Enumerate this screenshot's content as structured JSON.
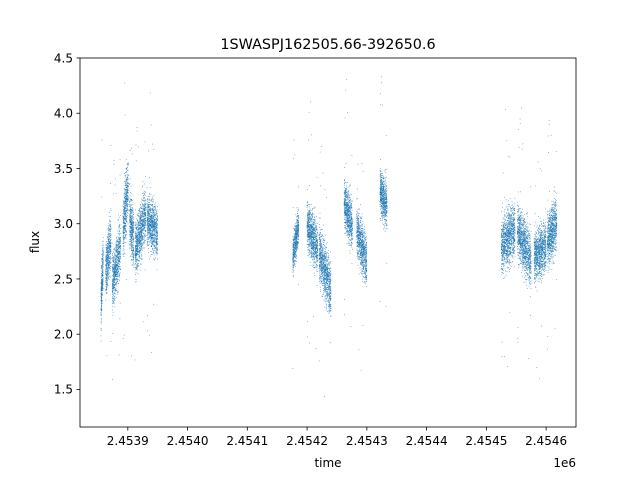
{
  "chart_data": {
    "type": "scatter",
    "title": "1SWASPJ162505.66-392650.6",
    "xlabel": "time",
    "ylabel": "flux",
    "x_offset_label": "1e6",
    "xlim": [
      2453820,
      2454650
    ],
    "ylim": [
      1.16,
      4.5
    ],
    "x_ticks": [
      2453900,
      2454000,
      2454100,
      2454200,
      2454300,
      2454400,
      2454500,
      2454600
    ],
    "x_tick_labels": [
      "2.4539",
      "2.4540",
      "2.4541",
      "2.4542",
      "2.4543",
      "2.4544",
      "2.4545",
      "2.4546"
    ],
    "y_ticks": [
      1.5,
      2.0,
      2.5,
      3.0,
      3.5,
      4.0,
      4.5
    ],
    "y_tick_labels": [
      "1.5",
      "2.0",
      "2.5",
      "3.0",
      "3.5",
      "4.0",
      "4.5"
    ],
    "grid": false,
    "point_color": "#1f77b4",
    "segments": [
      {
        "x_start": 2453855,
        "x_end": 2453859,
        "y_start": 2.25,
        "y_end": 2.7,
        "spread": 0.22
      },
      {
        "x_start": 2453863,
        "x_end": 2453872,
        "y_start": 2.55,
        "y_end": 2.85,
        "spread": 0.22
      },
      {
        "x_start": 2453874,
        "x_end": 2453888,
        "y_start": 2.45,
        "y_end": 2.8,
        "spread": 0.22
      },
      {
        "x_start": 2453892,
        "x_end": 2453901,
        "y_start": 2.95,
        "y_end": 3.35,
        "spread": 0.25
      },
      {
        "x_start": 2453903,
        "x_end": 2453910,
        "y_start": 3.05,
        "y_end": 2.85,
        "spread": 0.22
      },
      {
        "x_start": 2453912,
        "x_end": 2453930,
        "y_start": 2.75,
        "y_end": 3.1,
        "spread": 0.22
      },
      {
        "x_start": 2453932,
        "x_end": 2453950,
        "y_start": 3.05,
        "y_end": 2.9,
        "spread": 0.2
      },
      {
        "x_start": 2454176,
        "x_end": 2454186,
        "y_start": 2.7,
        "y_end": 3.0,
        "spread": 0.15
      },
      {
        "x_start": 2454200,
        "x_end": 2454218,
        "y_start": 3.0,
        "y_end": 2.75,
        "spread": 0.2
      },
      {
        "x_start": 2454220,
        "x_end": 2454240,
        "y_start": 2.75,
        "y_end": 2.4,
        "spread": 0.22
      },
      {
        "x_start": 2454262,
        "x_end": 2454276,
        "y_start": 3.2,
        "y_end": 2.95,
        "spread": 0.2
      },
      {
        "x_start": 2454283,
        "x_end": 2454300,
        "y_start": 2.95,
        "y_end": 2.65,
        "spread": 0.2
      },
      {
        "x_start": 2454322,
        "x_end": 2454334,
        "y_start": 3.3,
        "y_end": 3.15,
        "spread": 0.18
      },
      {
        "x_start": 2454525,
        "x_end": 2454548,
        "y_start": 2.8,
        "y_end": 2.95,
        "spread": 0.22
      },
      {
        "x_start": 2454552,
        "x_end": 2454575,
        "y_start": 2.95,
        "y_end": 2.65,
        "spread": 0.22
      },
      {
        "x_start": 2454580,
        "x_end": 2454600,
        "y_start": 2.7,
        "y_end": 2.8,
        "spread": 0.2
      },
      {
        "x_start": 2454602,
        "x_end": 2454618,
        "y_start": 2.85,
        "y_end": 3.0,
        "spread": 0.22
      }
    ]
  }
}
